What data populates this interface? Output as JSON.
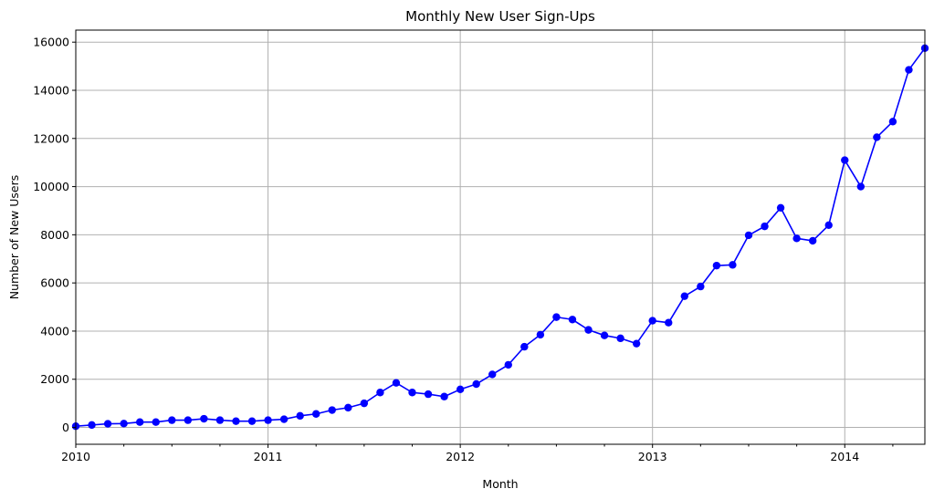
{
  "chart_data": {
    "type": "line",
    "title": "Monthly New User Sign-Ups",
    "xlabel": "Month",
    "ylabel": "Number of New Users",
    "grid": true,
    "series_color": "#0000ff",
    "grid_color": "#b0b0b0",
    "ylim": [
      -700,
      16500
    ],
    "xlim": [
      "2010-01",
      "2014-06"
    ],
    "y_ticks": [
      0,
      2000,
      4000,
      6000,
      8000,
      10000,
      12000,
      14000,
      16000
    ],
    "x_ticks": [
      {
        "x": "2010-01",
        "label": "2010"
      },
      {
        "x": "2011-01",
        "label": "2011"
      },
      {
        "x": "2012-01",
        "label": "2012"
      },
      {
        "x": "2013-01",
        "label": "2013"
      },
      {
        "x": "2014-01",
        "label": "2014"
      }
    ],
    "series": [
      {
        "x": [
          "2010-01",
          "2010-02",
          "2010-03",
          "2010-04",
          "2010-05",
          "2010-06",
          "2010-07",
          "2010-08",
          "2010-09",
          "2010-10",
          "2010-11",
          "2010-12",
          "2011-01",
          "2011-02",
          "2011-03",
          "2011-04",
          "2011-05",
          "2011-06",
          "2011-07",
          "2011-08",
          "2011-09",
          "2011-10",
          "2011-11",
          "2011-12",
          "2012-01",
          "2012-02",
          "2012-03",
          "2012-04",
          "2012-05",
          "2012-06",
          "2012-07",
          "2012-08",
          "2012-09",
          "2012-10",
          "2012-11",
          "2012-12",
          "2013-01",
          "2013-02",
          "2013-03",
          "2013-04",
          "2013-05",
          "2013-06",
          "2013-07",
          "2013-08",
          "2013-09",
          "2013-10",
          "2013-11",
          "2013-12",
          "2014-01",
          "2014-02",
          "2014-03",
          "2014-04",
          "2014-05",
          "2014-06"
        ],
        "values": [
          50,
          100,
          150,
          160,
          220,
          220,
          300,
          300,
          360,
          300,
          260,
          260,
          300,
          340,
          480,
          560,
          720,
          820,
          1000,
          1450,
          1850,
          1450,
          1380,
          1280,
          1580,
          1800,
          2200,
          2600,
          3350,
          3850,
          4580,
          4480,
          4050,
          3820,
          3700,
          3480,
          4430,
          4350,
          5450,
          5850,
          6720,
          6750,
          7980,
          8350,
          9120,
          7850,
          7750,
          8400,
          11100,
          10000,
          12050,
          12700,
          14850,
          15750
        ]
      }
    ]
  }
}
